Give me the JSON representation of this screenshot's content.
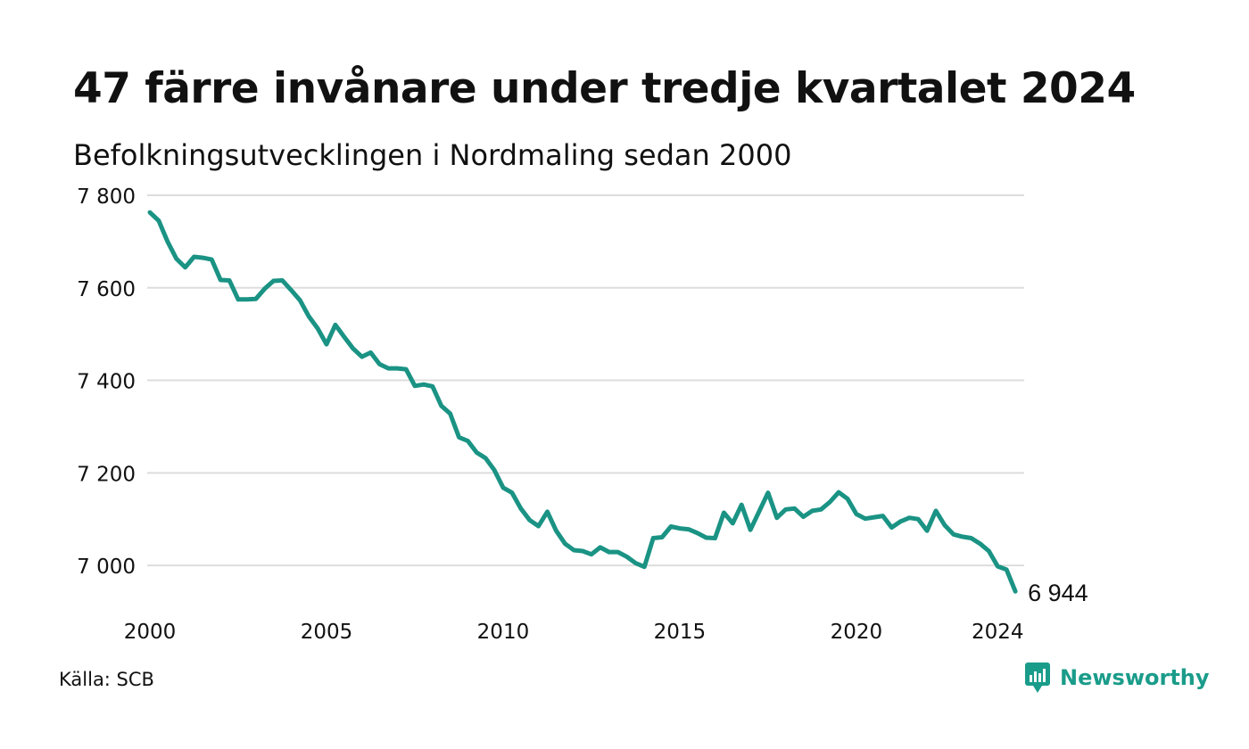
{
  "title": "47 färre invånare under tredje kvartalet 2024",
  "subtitle": "Befolkningsutvecklingen i Nordmaling sedan 2000",
  "source": "Källa: SCB",
  "brand": {
    "name": "Newsworthy",
    "icon": "newsworthy-logo-icon",
    "color": "#1a9c8a"
  },
  "chart_data": {
    "type": "line",
    "title": "47 färre invånare under tredje kvartalet 2024",
    "subtitle": "Befolkningsutvecklingen i Nordmaling sedan 2000",
    "xlabel": "",
    "ylabel": "",
    "x_ticks": [
      2000,
      2005,
      2010,
      2015,
      2020,
      2024
    ],
    "y_ticks": [
      {
        "value": 7000,
        "label": "7 000"
      },
      {
        "value": 7200,
        "label": "7 200"
      },
      {
        "value": 7400,
        "label": "7 400"
      },
      {
        "value": 7600,
        "label": "7 600"
      },
      {
        "value": 7800,
        "label": "7 800"
      }
    ],
    "xlim": [
      2000,
      2024.75
    ],
    "ylim": [
      6900,
      7800
    ],
    "grid": "horizontal",
    "legend": "none",
    "line_color": "#1a9384",
    "end_label": "6 944",
    "series": [
      {
        "values": [
          {
            "x": "2000 Q1",
            "y": 7763
          },
          {
            "x": "2000 Q2",
            "y": 7745
          },
          {
            "x": "2000 Q3",
            "y": 7700
          },
          {
            "x": "2000 Q4",
            "y": 7663
          },
          {
            "x": "2001 Q1",
            "y": 7644
          },
          {
            "x": "2001 Q2",
            "y": 7667
          },
          {
            "x": "2001 Q3",
            "y": 7665
          },
          {
            "x": "2001 Q4",
            "y": 7661
          },
          {
            "x": "2002 Q1",
            "y": 7617
          },
          {
            "x": "2002 Q2",
            "y": 7616
          },
          {
            "x": "2002 Q3",
            "y": 7575
          },
          {
            "x": "2002 Q4",
            "y": 7575
          },
          {
            "x": "2003 Q1",
            "y": 7576
          },
          {
            "x": "2003 Q2",
            "y": 7598
          },
          {
            "x": "2003 Q3",
            "y": 7615
          },
          {
            "x": "2003 Q4",
            "y": 7616
          },
          {
            "x": "2004 Q1",
            "y": 7595
          },
          {
            "x": "2004 Q2",
            "y": 7573
          },
          {
            "x": "2004 Q3",
            "y": 7538
          },
          {
            "x": "2004 Q4",
            "y": 7512
          },
          {
            "x": "2005 Q1",
            "y": 7478
          },
          {
            "x": "2005 Q2",
            "y": 7520
          },
          {
            "x": "2005 Q3",
            "y": 7494
          },
          {
            "x": "2005 Q4",
            "y": 7469
          },
          {
            "x": "2006 Q1",
            "y": 7451
          },
          {
            "x": "2006 Q2",
            "y": 7460
          },
          {
            "x": "2006 Q3",
            "y": 7435
          },
          {
            "x": "2006 Q4",
            "y": 7426
          },
          {
            "x": "2007 Q1",
            "y": 7426
          },
          {
            "x": "2007 Q2",
            "y": 7424
          },
          {
            "x": "2007 Q3",
            "y": 7388
          },
          {
            "x": "2007 Q4",
            "y": 7391
          },
          {
            "x": "2008 Q1",
            "y": 7387
          },
          {
            "x": "2008 Q2",
            "y": 7345
          },
          {
            "x": "2008 Q3",
            "y": 7328
          },
          {
            "x": "2008 Q4",
            "y": 7277
          },
          {
            "x": "2009 Q1",
            "y": 7269
          },
          {
            "x": "2009 Q2",
            "y": 7244
          },
          {
            "x": "2009 Q3",
            "y": 7232
          },
          {
            "x": "2009 Q4",
            "y": 7206
          },
          {
            "x": "2010 Q1",
            "y": 7168
          },
          {
            "x": "2010 Q2",
            "y": 7157
          },
          {
            "x": "2010 Q3",
            "y": 7123
          },
          {
            "x": "2010 Q4",
            "y": 7098
          },
          {
            "x": "2011 Q1",
            "y": 7085
          },
          {
            "x": "2011 Q2",
            "y": 7116
          },
          {
            "x": "2011 Q3",
            "y": 7075
          },
          {
            "x": "2011 Q4",
            "y": 7047
          },
          {
            "x": "2012 Q1",
            "y": 7033
          },
          {
            "x": "2012 Q2",
            "y": 7031
          },
          {
            "x": "2012 Q3",
            "y": 7024
          },
          {
            "x": "2012 Q4",
            "y": 7039
          },
          {
            "x": "2013 Q1",
            "y": 7029
          },
          {
            "x": "2013 Q2",
            "y": 7029
          },
          {
            "x": "2013 Q3",
            "y": 7019
          },
          {
            "x": "2013 Q4",
            "y": 7005
          },
          {
            "x": "2014 Q1",
            "y": 6997
          },
          {
            "x": "2014 Q2",
            "y": 7059
          },
          {
            "x": "2014 Q3",
            "y": 7061
          },
          {
            "x": "2014 Q4",
            "y": 7084
          },
          {
            "x": "2015 Q1",
            "y": 7080
          },
          {
            "x": "2015 Q2",
            "y": 7078
          },
          {
            "x": "2015 Q3",
            "y": 7070
          },
          {
            "x": "2015 Q4",
            "y": 7060
          },
          {
            "x": "2016 Q1",
            "y": 7059
          },
          {
            "x": "2016 Q2",
            "y": 7114
          },
          {
            "x": "2016 Q3",
            "y": 7091
          },
          {
            "x": "2016 Q4",
            "y": 7131
          },
          {
            "x": "2017 Q1",
            "y": 7077
          },
          {
            "x": "2017 Q2",
            "y": 7117
          },
          {
            "x": "2017 Q3",
            "y": 7157
          },
          {
            "x": "2017 Q4",
            "y": 7103
          },
          {
            "x": "2018 Q1",
            "y": 7121
          },
          {
            "x": "2018 Q2",
            "y": 7123
          },
          {
            "x": "2018 Q3",
            "y": 7105
          },
          {
            "x": "2018 Q4",
            "y": 7118
          },
          {
            "x": "2019 Q1",
            "y": 7121
          },
          {
            "x": "2019 Q2",
            "y": 7137
          },
          {
            "x": "2019 Q3",
            "y": 7158
          },
          {
            "x": "2019 Q4",
            "y": 7144
          },
          {
            "x": "2020 Q1",
            "y": 7111
          },
          {
            "x": "2020 Q2",
            "y": 7101
          },
          {
            "x": "2020 Q3",
            "y": 7104
          },
          {
            "x": "2020 Q4",
            "y": 7107
          },
          {
            "x": "2021 Q1",
            "y": 7082
          },
          {
            "x": "2021 Q2",
            "y": 7095
          },
          {
            "x": "2021 Q3",
            "y": 7103
          },
          {
            "x": "2021 Q4",
            "y": 7100
          },
          {
            "x": "2022 Q1",
            "y": 7075
          },
          {
            "x": "2022 Q2",
            "y": 7118
          },
          {
            "x": "2022 Q3",
            "y": 7087
          },
          {
            "x": "2022 Q4",
            "y": 7067
          },
          {
            "x": "2023 Q1",
            "y": 7062
          },
          {
            "x": "2023 Q2",
            "y": 7059
          },
          {
            "x": "2023 Q3",
            "y": 7047
          },
          {
            "x": "2023 Q4",
            "y": 7031
          },
          {
            "x": "2024 Q1",
            "y": 6998
          },
          {
            "x": "2024 Q2",
            "y": 6991
          },
          {
            "x": "2024 Q3",
            "y": 6944
          }
        ]
      }
    ]
  }
}
